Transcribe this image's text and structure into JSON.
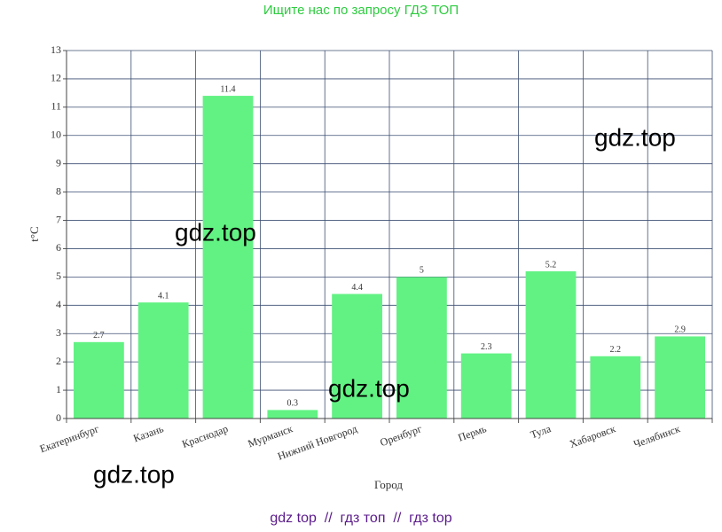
{
  "header": "Ищите нас по запросу ГДЗ ТОП",
  "footer": "gdz top  //  гдз топ  //  гдз top",
  "watermarks": [
    "gdz.top",
    "gdz.top",
    "gdz.top",
    "gdz.top"
  ],
  "chart_data": {
    "type": "bar",
    "x_label": "Город",
    "y_label": "t°C",
    "categories": [
      "Екатеринбург",
      "Казань",
      "Краснодар",
      "Мурманск",
      "Нижний Новгород",
      "Оренбург",
      "Пермь",
      "Тула",
      "Хабаровск",
      "Челябинск"
    ],
    "values": [
      2.7,
      4.1,
      11.4,
      0.3,
      4.4,
      5,
      2.3,
      5.2,
      2.2,
      2.9
    ],
    "color": "#62f283",
    "ylim": [
      0,
      13
    ],
    "yticks": [
      0,
      1,
      2,
      3,
      4,
      5,
      6,
      7,
      8,
      9,
      10,
      11,
      12,
      13
    ],
    "grid": true
  }
}
